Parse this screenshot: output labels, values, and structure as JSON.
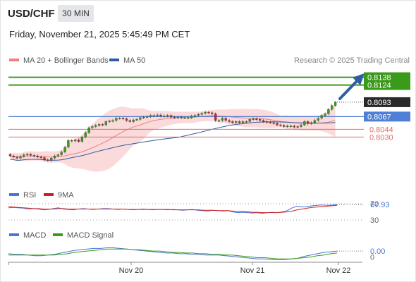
{
  "header": {
    "symbol": "USD/CHF",
    "timeframe": "30 MIN",
    "datetime": "Friday, November 21, 2025 5:45:49 PM CET",
    "credit": "Research © 2025 Trading Central"
  },
  "legend": {
    "bb": "MA 20 + Bollinger Bands",
    "ma50": "MA 50",
    "rsi": "RSI",
    "rsi_ma": "9MA",
    "macd": "MACD",
    "macd_signal": "MACD Signal"
  },
  "colors": {
    "resistance": "#3a9a1a",
    "pivot": "#4f7fd6",
    "support": "#e06a6a",
    "price": "#2a2a2a",
    "bull_candle": "#3a9a1a",
    "bear_candle": "#c62828",
    "bb_fill": "#f9d6d6",
    "ma50": "#2f5c9e",
    "rsi": "#4a74d6",
    "rsi_ma": "#cc2020",
    "macd": "#4a74d6",
    "signal": "#3a9a1a"
  },
  "chart_data": [
    {
      "type": "candlestick",
      "ylim": [
        0.7958,
        0.8154
      ],
      "x_labels": [
        "Nov 20",
        "Nov 21",
        "Nov 22"
      ],
      "levels": [
        {
          "value": 0.8138,
          "label": "0.8138",
          "kind": "resistance"
        },
        {
          "value": 0.8124,
          "label": "0.8124",
          "kind": "resistance"
        },
        {
          "value": 0.8093,
          "label": "0.8093",
          "kind": "price"
        },
        {
          "value": 0.8067,
          "label": "0.8067",
          "kind": "pivot"
        },
        {
          "value": 0.8044,
          "label": "0.8044",
          "kind": "support"
        },
        {
          "value": 0.803,
          "label": "0.8030",
          "kind": "support"
        }
      ],
      "close": [
        0.7996,
        0.7994,
        0.7992,
        0.7995,
        0.7998,
        0.7999,
        0.7997,
        0.7996,
        0.7994,
        0.7993,
        0.7989,
        0.7988,
        0.7992,
        0.7996,
        0.7998,
        0.8003,
        0.8012,
        0.8024,
        0.8023,
        0.8025,
        0.8022,
        0.803,
        0.8038,
        0.8047,
        0.8049,
        0.8051,
        0.8053,
        0.8052,
        0.8058,
        0.8059,
        0.806,
        0.8064,
        0.8064,
        0.8063,
        0.806,
        0.8058,
        0.8061,
        0.8062,
        0.8065,
        0.8066,
        0.8067,
        0.8069,
        0.8069,
        0.807,
        0.8068,
        0.8068,
        0.8069,
        0.8066,
        0.8065,
        0.8066,
        0.8065,
        0.8065,
        0.8065,
        0.8068,
        0.8069,
        0.8071,
        0.8073,
        0.8075,
        0.8074,
        0.8072,
        0.806,
        0.806,
        0.8064,
        0.806,
        0.8058,
        0.8056,
        0.8058,
        0.8056,
        0.8058,
        0.8058,
        0.8062,
        0.8063,
        0.8062,
        0.806,
        0.8058,
        0.8057,
        0.8056,
        0.8055,
        0.8052,
        0.8051,
        0.8049,
        0.805,
        0.805,
        0.8048,
        0.8049,
        0.8052,
        0.8058,
        0.8054,
        0.8056,
        0.806,
        0.8064,
        0.8069,
        0.8072,
        0.808,
        0.8087,
        0.8093
      ]
    },
    {
      "type": "line",
      "ylim": [
        30,
        70
      ],
      "ticks": [
        30,
        70
      ],
      "current_label": "67.93",
      "series": [
        {
          "name": "RSI",
          "values": [
            60,
            61,
            60,
            59,
            57,
            58,
            57,
            55,
            56,
            58,
            60,
            57,
            56,
            55,
            57,
            58,
            57,
            56,
            57,
            58,
            58,
            57,
            56,
            57,
            56,
            55,
            56,
            57,
            56,
            55,
            56,
            56,
            55,
            56,
            55,
            54,
            55,
            56,
            54,
            53,
            52,
            54,
            53,
            52,
            53,
            50,
            48,
            49,
            48,
            47,
            48,
            46,
            48,
            49,
            48,
            50,
            53,
            60,
            64,
            62,
            63,
            65,
            66,
            67,
            66,
            67,
            68
          ]
        },
        {
          "name": "9MA",
          "values": [
            63,
            62,
            61,
            60,
            59,
            58,
            58,
            57,
            57,
            57,
            58,
            58,
            57,
            57,
            57,
            57,
            57,
            57,
            57,
            57,
            57,
            57,
            57,
            57,
            56,
            56,
            56,
            56,
            56,
            56,
            56,
            56,
            56,
            55,
            55,
            55,
            55,
            55,
            55,
            54,
            54,
            54,
            53,
            53,
            53,
            52,
            51,
            51,
            50,
            49,
            49,
            48,
            48,
            48,
            48,
            49,
            50,
            52,
            55,
            57,
            59,
            61,
            62,
            63,
            64,
            65,
            66
          ]
        }
      ]
    },
    {
      "type": "line",
      "ylim": [
        -0.0008,
        0.0022
      ],
      "ticks": [
        0
      ],
      "current_label": "0.00",
      "series": [
        {
          "name": "MACD",
          "values": [
            0.0005,
            0.0004,
            0.0004,
            0.0003,
            0.0002,
            0.0002,
            0.0003,
            0.0004,
            0.0006,
            0.0008,
            0.001,
            0.0011,
            0.0012,
            0.0013,
            0.0013,
            0.0014,
            0.0014,
            0.0013,
            0.0012,
            0.0011,
            0.001,
            0.0009,
            0.0008,
            0.0007,
            0.0006,
            0.0006,
            0.0005,
            0.0005,
            0.0004,
            0.0004,
            0.0003,
            0.0003,
            0.0003,
            0.0002,
            0.0001,
            0.0,
            -0.0001,
            -0.0002,
            -0.0003,
            -0.0003,
            -0.0004,
            -0.0004,
            -0.0004,
            -0.0003,
            -0.0002,
            0.0001,
            0.0003,
            0.0005,
            0.0007,
            0.0008,
            0.0009
          ]
        },
        {
          "name": "MACD Signal",
          "values": [
            0.0003,
            0.0003,
            0.0003,
            0.0003,
            0.0003,
            0.0003,
            0.0003,
            0.0003,
            0.0004,
            0.0005,
            0.0007,
            0.0008,
            0.0009,
            0.001,
            0.0011,
            0.0012,
            0.0012,
            0.0012,
            0.0012,
            0.0011,
            0.0011,
            0.001,
            0.0009,
            0.0009,
            0.0008,
            0.0007,
            0.0007,
            0.0006,
            0.0006,
            0.0005,
            0.0005,
            0.0004,
            0.0004,
            0.0003,
            0.0003,
            0.0002,
            0.0001,
            0.0,
            -0.0001,
            -0.0001,
            -0.0002,
            -0.0003,
            -0.0003,
            -0.0003,
            -0.0002,
            -0.0001,
            0.0,
            0.0002,
            0.0003,
            0.0005,
            0.0006
          ]
        }
      ]
    }
  ]
}
